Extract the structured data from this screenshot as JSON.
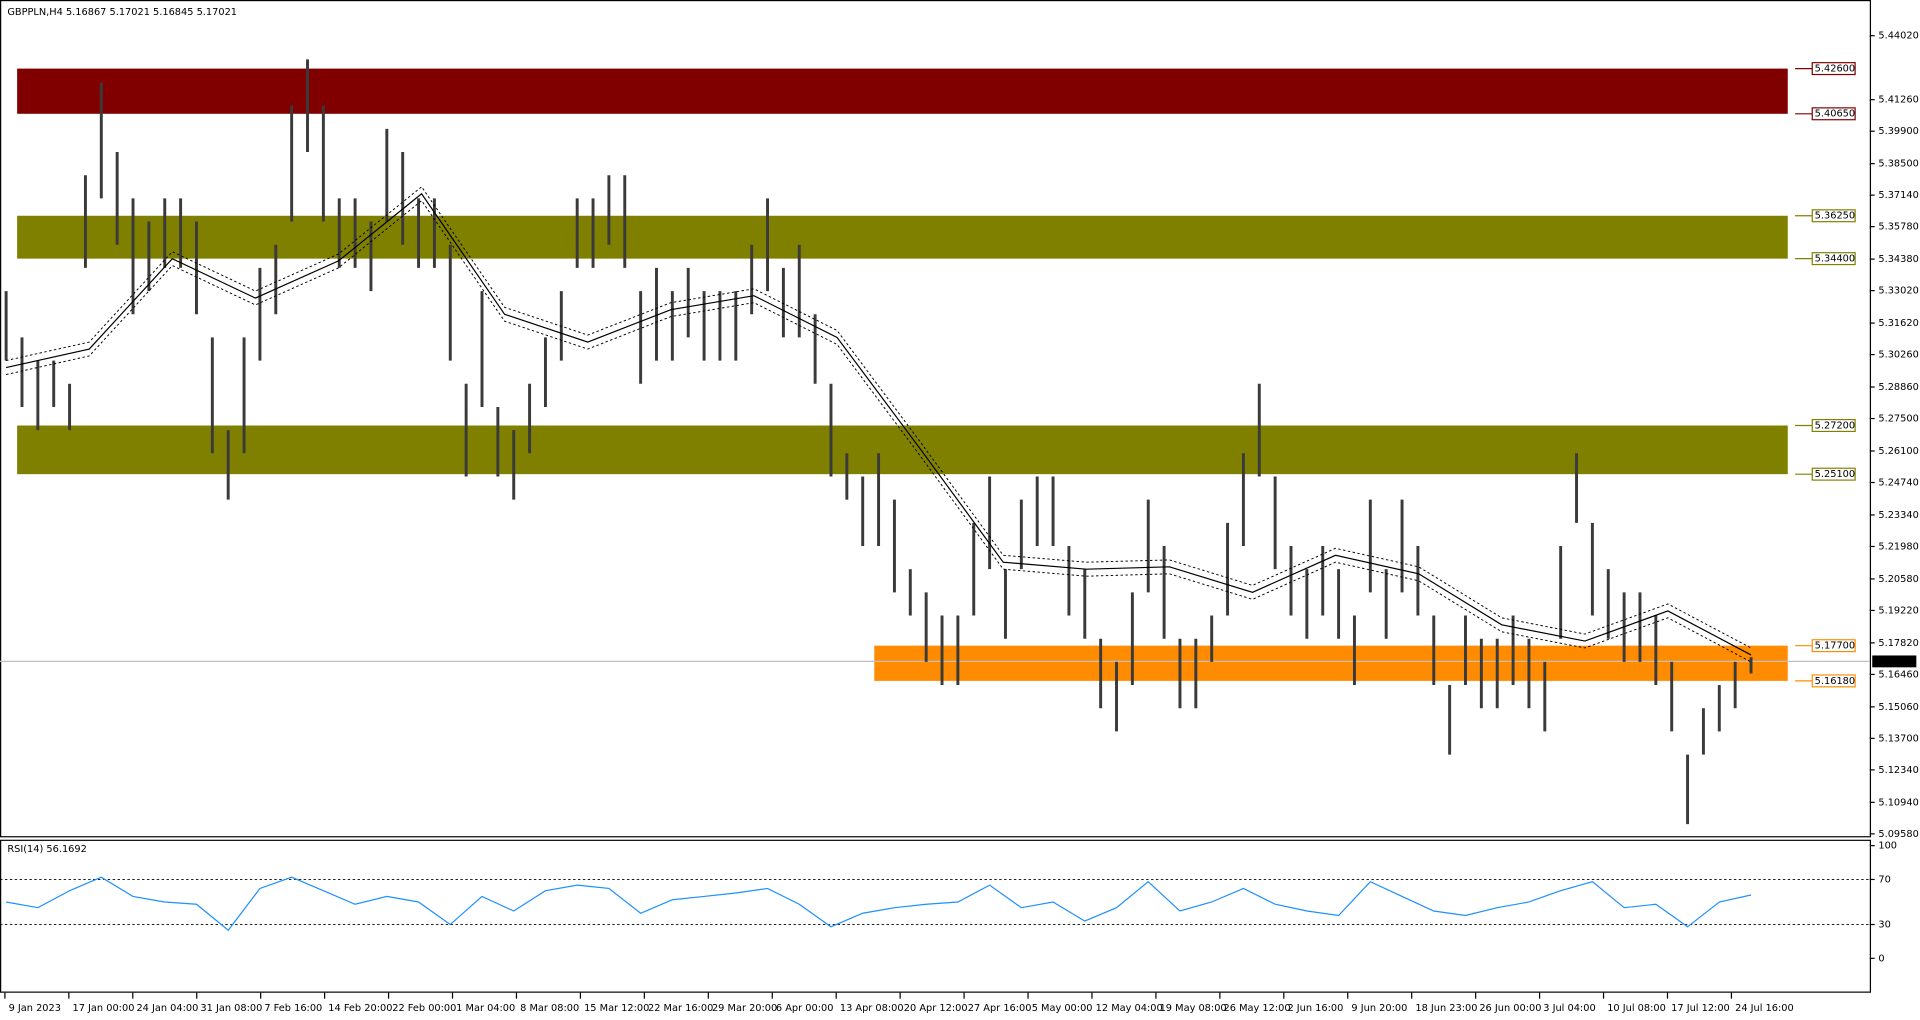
{
  "chart_data": {
    "type": "hlbar",
    "title": "GBPPLN,H4  5.16867 5.17021 5.16845 5.17021",
    "ylim": [
      5.0948,
      5.4556
    ],
    "yticks": [
      {
        "value": 5.4402,
        "label": "5.44020"
      },
      {
        "value": 5.4126,
        "label": "5.41260"
      },
      {
        "value": 5.399,
        "label": "5.39900"
      },
      {
        "value": 5.385,
        "label": "5.38500"
      },
      {
        "value": 5.3714,
        "label": "5.37140"
      },
      {
        "value": 5.3578,
        "label": "5.35780"
      },
      {
        "value": 5.3438,
        "label": "5.34380"
      },
      {
        "value": 5.3302,
        "label": "5.33020"
      },
      {
        "value": 5.3162,
        "label": "5.31620"
      },
      {
        "value": 5.3026,
        "label": "5.30260"
      },
      {
        "value": 5.2886,
        "label": "5.28860"
      },
      {
        "value": 5.275,
        "label": "5.27500"
      },
      {
        "value": 5.261,
        "label": "5.26100"
      },
      {
        "value": 5.2474,
        "label": "5.24740"
      },
      {
        "value": 5.2334,
        "label": "5.23340"
      },
      {
        "value": 5.2198,
        "label": "5.21980"
      },
      {
        "value": 5.2058,
        "label": "5.20580"
      },
      {
        "value": 5.1922,
        "label": "5.19220"
      },
      {
        "value": 5.1782,
        "label": "5.17820"
      },
      {
        "value": 5.1646,
        "label": "5.16460"
      },
      {
        "value": 5.1506,
        "label": "5.15060"
      },
      {
        "value": 5.137,
        "label": "5.13700"
      },
      {
        "value": 5.1234,
        "label": "5.12340"
      },
      {
        "value": 5.1094,
        "label": "5.10940"
      },
      {
        "value": 5.0958,
        "label": "5.09580"
      }
    ],
    "categories": [
      "9 Jan 2023",
      "17 Jan 00:00",
      "24 Jan 04:00",
      "31 Jan 08:00",
      "7 Feb 16:00",
      "14 Feb 20:00",
      "22 Feb 00:00",
      "1 Mar 04:00",
      "8 Mar 08:00",
      "15 Mar 12:00",
      "22 Mar 16:00",
      "29 Mar 20:00",
      "6 Apr 00:00",
      "13 Apr 08:00",
      "20 Apr 12:00",
      "27 Apr 16:00",
      "5 May 00:00",
      "12 May 04:00",
      "19 May 08:00",
      "26 May 12:00",
      "2 Jun 16:00",
      "9 Jun 20:00",
      "18 Jun 23:00",
      "26 Jun 00:00",
      "3 Jul 04:00",
      "10 Jul 08:00",
      "17 Jul 12:00",
      "24 Jul 16:00"
    ],
    "high": [
      5.33,
      5.31,
      5.3,
      5.3,
      5.29,
      5.38,
      5.42,
      5.39,
      5.37,
      5.36,
      5.37,
      5.37,
      5.36,
      5.31,
      5.27,
      5.31,
      5.34,
      5.35,
      5.41,
      5.43,
      5.41,
      5.37,
      5.37,
      5.36,
      5.4,
      5.39,
      5.37,
      5.37,
      5.35,
      5.29,
      5.33,
      5.28,
      5.27,
      5.29,
      5.31,
      5.33,
      5.37,
      5.37,
      5.38,
      5.38,
      5.33,
      5.34,
      5.33,
      5.34,
      5.33,
      5.33,
      5.33,
      5.35,
      5.37,
      5.34,
      5.35,
      5.32,
      5.29,
      5.26,
      5.25,
      5.26,
      5.24,
      5.21,
      5.2,
      5.19,
      5.19,
      5.23,
      5.25,
      5.21,
      5.24,
      5.25,
      5.25,
      5.22,
      5.21,
      5.18,
      5.17,
      5.2,
      5.24,
      5.22,
      5.18,
      5.18,
      5.19,
      5.23,
      5.26,
      5.29,
      5.25,
      5.22,
      5.21,
      5.22,
      5.21,
      5.19,
      5.24,
      5.21,
      5.24,
      5.22,
      5.19,
      5.16,
      5.19,
      5.18,
      5.18,
      5.19,
      5.18,
      5.17,
      5.22,
      5.26,
      5.23,
      5.21,
      5.2,
      5.2,
      5.19,
      5.17,
      5.13,
      5.15,
      5.16,
      5.17,
      5.172
    ],
    "low": [
      5.3,
      5.28,
      5.27,
      5.28,
      5.27,
      5.34,
      5.37,
      5.35,
      5.32,
      5.33,
      5.34,
      5.34,
      5.32,
      5.26,
      5.24,
      5.26,
      5.3,
      5.32,
      5.36,
      5.39,
      5.36,
      5.34,
      5.34,
      5.33,
      5.36,
      5.35,
      5.34,
      5.34,
      5.3,
      5.25,
      5.28,
      5.25,
      5.24,
      5.26,
      5.28,
      5.3,
      5.34,
      5.34,
      5.35,
      5.34,
      5.29,
      5.3,
      5.3,
      5.31,
      5.3,
      5.3,
      5.3,
      5.32,
      5.33,
      5.31,
      5.31,
      5.29,
      5.25,
      5.24,
      5.22,
      5.22,
      5.2,
      5.19,
      5.17,
      5.16,
      5.16,
      5.19,
      5.21,
      5.18,
      5.21,
      5.22,
      5.22,
      5.19,
      5.18,
      5.15,
      5.14,
      5.16,
      5.2,
      5.18,
      5.15,
      5.15,
      5.17,
      5.19,
      5.22,
      5.25,
      5.21,
      5.19,
      5.18,
      5.19,
      5.18,
      5.16,
      5.2,
      5.18,
      5.2,
      5.19,
      5.16,
      5.13,
      5.16,
      5.15,
      5.15,
      5.16,
      5.15,
      5.14,
      5.18,
      5.23,
      5.19,
      5.18,
      5.17,
      5.17,
      5.16,
      5.14,
      5.1,
      5.13,
      5.14,
      5.15,
      5.165
    ],
    "ma": [
      5.297,
      5.305,
      5.344,
      5.327,
      5.343,
      5.372,
      5.32,
      5.308,
      5.322,
      5.328,
      5.31,
      5.262,
      5.213,
      5.21,
      5.211,
      5.2,
      5.216,
      5.208,
      5.186,
      5.179,
      5.192,
      5.173
    ],
    "ma_upper": [
      5.3,
      5.308,
      5.347,
      5.33,
      5.346,
      5.375,
      5.323,
      5.311,
      5.325,
      5.331,
      5.313,
      5.265,
      5.216,
      5.213,
      5.214,
      5.203,
      5.219,
      5.211,
      5.189,
      5.182,
      5.195,
      5.176
    ],
    "ma_lower": [
      5.294,
      5.302,
      5.341,
      5.324,
      5.34,
      5.369,
      5.317,
      5.305,
      5.319,
      5.325,
      5.307,
      5.259,
      5.21,
      5.207,
      5.208,
      5.197,
      5.213,
      5.205,
      5.183,
      5.176,
      5.189,
      5.17
    ],
    "zones": [
      {
        "top": {
          "value": 5.426,
          "label": "5.42600"
        },
        "bottom": {
          "value": 5.4065,
          "label": "5.40650"
        },
        "color": "#800000"
      },
      {
        "top": {
          "value": 5.3625,
          "label": "5.36250"
        },
        "bottom": {
          "value": 5.344,
          "label": "5.34400"
        },
        "color": "#808000"
      },
      {
        "top": {
          "value": 5.272,
          "label": "5.27200"
        },
        "bottom": {
          "value": 5.251,
          "label": "5.25100"
        },
        "color": "#808000"
      },
      {
        "top": {
          "value": 5.177,
          "label": "5.17700"
        },
        "bottom": {
          "value": 5.1618,
          "label": "5.16180"
        },
        "color": "#ff8c00"
      }
    ],
    "last_price": {
      "value": 5.17021,
      "label": "5.17021"
    },
    "rsi": {
      "title": "RSI(14) 56.1692",
      "ylim": [
        0,
        100
      ],
      "yticks": [
        100,
        70,
        30,
        0
      ],
      "levels": [
        70,
        30
      ],
      "color": "#1e90ff",
      "values": [
        50,
        45,
        60,
        72,
        55,
        50,
        48,
        25,
        62,
        72,
        60,
        48,
        55,
        50,
        30,
        55,
        42,
        60,
        65,
        62,
        40,
        52,
        55,
        58,
        62,
        48,
        28,
        40,
        45,
        48,
        50,
        65,
        45,
        50,
        33,
        45,
        68,
        42,
        50,
        62,
        48,
        42,
        38,
        68,
        55,
        42,
        38,
        45,
        50,
        60,
        68,
        45,
        48,
        28,
        50,
        56.17
      ]
    }
  }
}
